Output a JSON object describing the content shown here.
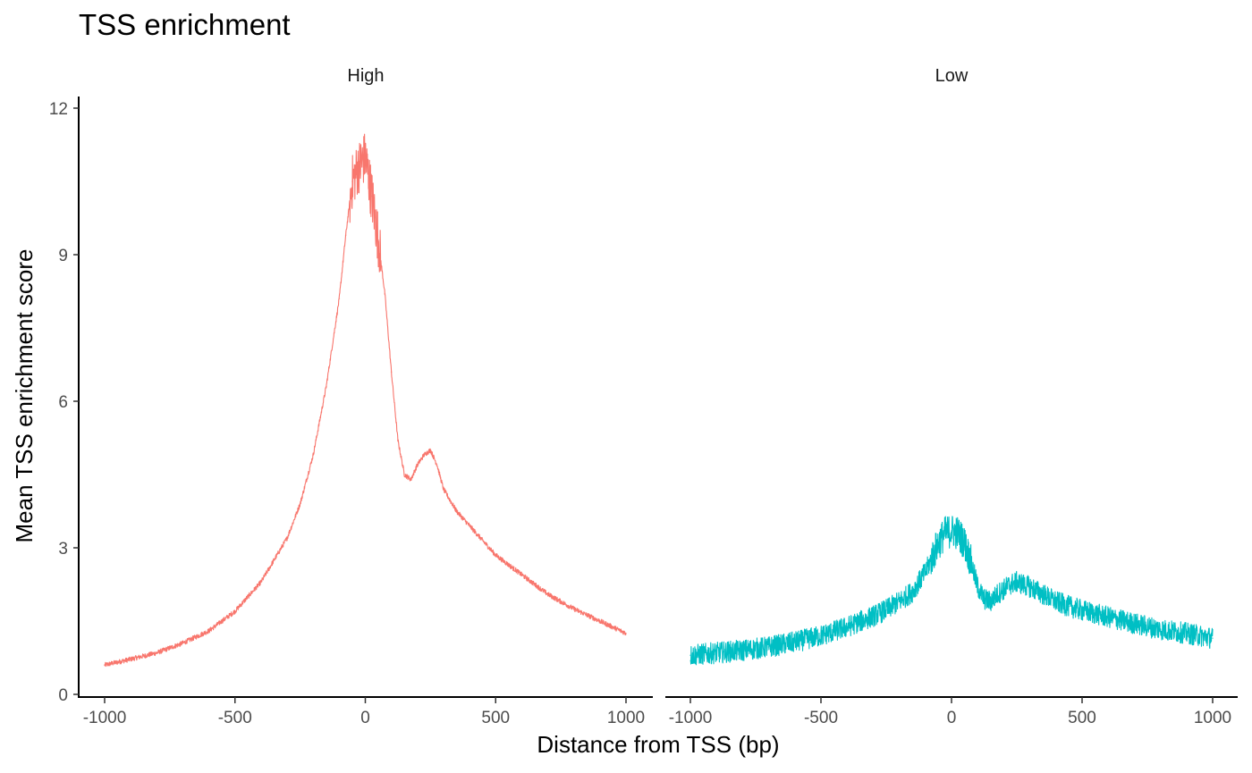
{
  "chart_data": {
    "type": "line",
    "title": "TSS enrichment",
    "xlabel": "Distance from TSS (bp)",
    "ylabel": "Mean TSS enrichment score",
    "xlim": [
      -1000,
      1000
    ],
    "ylim": [
      0,
      12
    ],
    "x_ticks": [
      "-1000",
      "-500",
      "0",
      "500",
      "1000"
    ],
    "y_ticks": [
      "0",
      "3",
      "6",
      "9",
      "12"
    ],
    "grid": false,
    "legend": "none",
    "panels": [
      {
        "name": "High",
        "color": "#F8766D",
        "x": [
          -1000,
          -900,
          -800,
          -700,
          -600,
          -500,
          -400,
          -300,
          -250,
          -200,
          -150,
          -100,
          -75,
          -50,
          -25,
          0,
          25,
          50,
          75,
          100,
          125,
          150,
          175,
          200,
          225,
          250,
          275,
          300,
          350,
          400,
          450,
          500,
          600,
          700,
          800,
          900,
          1000
        ],
        "y": [
          0.6,
          0.72,
          0.85,
          1.05,
          1.3,
          1.7,
          2.3,
          3.2,
          3.9,
          4.9,
          6.3,
          8.1,
          9.4,
          10.5,
          10.8,
          11.0,
          10.2,
          9.3,
          8.2,
          6.6,
          5.2,
          4.5,
          4.4,
          4.7,
          4.9,
          5.0,
          4.7,
          4.2,
          3.75,
          3.45,
          3.15,
          2.85,
          2.45,
          2.05,
          1.75,
          1.5,
          1.25
        ]
      },
      {
        "name": "Low",
        "color": "#00BFC4",
        "x": [
          -1000,
          -900,
          -800,
          -700,
          -600,
          -500,
          -400,
          -300,
          -250,
          -200,
          -150,
          -100,
          -75,
          -50,
          -25,
          0,
          25,
          50,
          75,
          100,
          125,
          150,
          175,
          200,
          225,
          250,
          275,
          300,
          350,
          400,
          450,
          500,
          600,
          700,
          800,
          900,
          1000
        ],
        "y": [
          0.8,
          0.85,
          0.9,
          0.97,
          1.07,
          1.2,
          1.38,
          1.6,
          1.73,
          1.9,
          2.1,
          2.5,
          2.8,
          3.1,
          3.3,
          3.35,
          3.3,
          3.1,
          2.7,
          2.2,
          1.95,
          1.9,
          2.05,
          2.15,
          2.25,
          2.3,
          2.25,
          2.2,
          2.05,
          1.9,
          1.8,
          1.72,
          1.58,
          1.45,
          1.33,
          1.25,
          1.15
        ]
      }
    ]
  }
}
